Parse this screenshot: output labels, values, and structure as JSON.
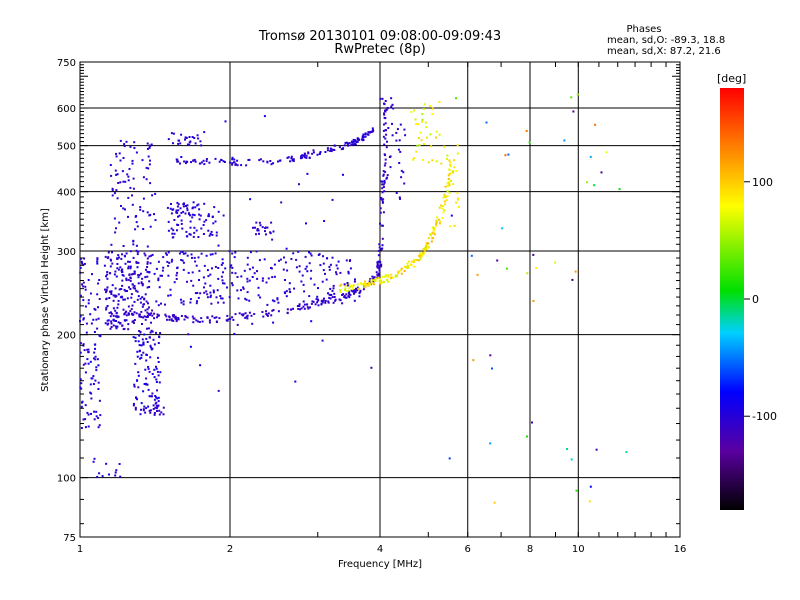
{
  "chart_data": {
    "type": "scatter",
    "title": "Tromsø 20130101 09:08:00-09:09:43",
    "subtitle": "RwPretec (8p)",
    "stats": {
      "heading": "Phases",
      "line_o": "mean, sd,O: -89.3, 18.8",
      "line_x": "mean, sd,X:  87.2, 21.6"
    },
    "xlabel": "Frequency [MHz]",
    "ylabel": "Stationary phase Virtual Height [km]",
    "x_scale": "log",
    "y_scale": "log",
    "xlim": [
      1,
      16
    ],
    "ylim": [
      75,
      750
    ],
    "x_ticks": [
      {
        "value": 1,
        "label": "1"
      },
      {
        "value": 2,
        "label": "2"
      },
      {
        "value": 4,
        "label": "4"
      },
      {
        "value": 6,
        "label": "6"
      },
      {
        "value": 8,
        "label": "8"
      },
      {
        "value": 10,
        "label": "10"
      },
      {
        "value": 16,
        "label": "16"
      }
    ],
    "x_gridlines": [
      2,
      4,
      6,
      8,
      10
    ],
    "y_ticks": [
      {
        "value": 75,
        "label": "75"
      },
      {
        "value": 100,
        "label": "100"
      },
      {
        "value": 200,
        "label": "200"
      },
      {
        "value": 300,
        "label": "300"
      },
      {
        "value": 400,
        "label": "400"
      },
      {
        "value": 500,
        "label": "500"
      },
      {
        "value": 600,
        "label": "600"
      },
      {
        "value": 750,
        "label": "750"
      }
    ],
    "y_gridlines": [
      100,
      200,
      300,
      400,
      500,
      600
    ],
    "colorbar": {
      "label": "[deg]",
      "min": -180,
      "max": 180,
      "ticks": [
        {
          "value": 100,
          "label": "100"
        },
        {
          "value": 0,
          "label": "0"
        },
        {
          "value": -100,
          "label": "-100"
        }
      ],
      "placement": "right",
      "colormap": [
        "#000000",
        "#5a00a0",
        "#0000ff",
        "#00d0ff",
        "#00e000",
        "#ffff00",
        "#ff8000",
        "#ff0000"
      ]
    },
    "grid": true,
    "series": [
      {
        "clusters": [
          {
            "curve": [
              [
                1.18,
                222
              ],
              [
                1.3,
                221
              ],
              [
                1.45,
                218
              ],
              [
                1.6,
                216
              ],
              [
                1.8,
                215
              ],
              [
                2.0,
                217
              ],
              [
                2.2,
                220
              ],
              [
                2.4,
                222
              ],
              [
                2.6,
                225
              ],
              [
                2.8,
                229
              ],
              [
                3.0,
                233
              ],
              [
                3.2,
                237
              ],
              [
                3.4,
                242
              ],
              [
                3.6,
                247
              ],
              [
                3.8,
                255
              ],
              [
                3.95,
                268
              ],
              [
                4.0,
                285
              ],
              [
                4.02,
                320
              ],
              [
                4.05,
                380
              ],
              [
                4.08,
                450
              ],
              [
                4.1,
                520
              ],
              [
                4.12,
                600
              ]
            ],
            "count": 260,
            "jitter": 0.03,
            "phase": [
              -115,
              -100
            ]
          },
          {
            "curve": [
              [
                3.3,
                250
              ],
              [
                3.6,
                253
              ],
              [
                3.9,
                258
              ],
              [
                4.1,
                262
              ],
              [
                4.4,
                270
              ],
              [
                4.7,
                285
              ],
              [
                4.9,
                300
              ],
              [
                5.1,
                325
              ],
              [
                5.3,
                360
              ],
              [
                5.5,
                410
              ],
              [
                5.6,
                460
              ]
            ],
            "count": 180,
            "jitter": 0.035,
            "phase": [
              60,
              110
            ]
          },
          {
            "curve": [
              [
                1.55,
                465
              ],
              [
                1.9,
                462
              ],
              [
                2.2,
                460
              ],
              [
                2.6,
                465
              ],
              [
                2.9,
                478
              ],
              [
                3.2,
                492
              ],
              [
                3.5,
                505
              ],
              [
                3.7,
                520
              ],
              [
                3.9,
                545
              ]
            ],
            "count": 150,
            "jitter": 0.03,
            "phase": [
              -110,
              -95
            ]
          },
          {
            "range": [
              1.12,
              1.4,
              205,
              300
            ],
            "count": 230,
            "phase": [
              -115,
              -95
            ]
          },
          {
            "range": [
              1.4,
              3.6,
              230,
              300
            ],
            "count": 260,
            "phase": [
              -110,
              -95
            ]
          },
          {
            "range": [
              1.5,
              1.9,
              320,
              380
            ],
            "count": 90,
            "phase": [
              -110,
              -95
            ]
          },
          {
            "range": [
              2.2,
              2.45,
              325,
              345
            ],
            "count": 20,
            "phase": [
              -110,
              -95
            ]
          },
          {
            "range": [
              1.28,
              1.45,
              140,
              205
            ],
            "count": 100,
            "phase": [
              -110,
              -85
            ]
          },
          {
            "range": [
              1.28,
              1.48,
              135,
              142
            ],
            "count": 25,
            "phase": [
              -115,
              -100
            ]
          },
          {
            "range": [
              1.0,
              1.1,
              125,
              290
            ],
            "count": 110,
            "phase": [
              -115,
              -90
            ]
          },
          {
            "range": [
              1.15,
              1.42,
              300,
              520
            ],
            "count": 90,
            "phase": [
              -110,
              -95
            ]
          },
          {
            "range": [
              1.5,
              1.78,
              500,
              535
            ],
            "count": 25,
            "phase": [
              -110,
              -95
            ]
          },
          {
            "range": [
              4.6,
              5.3,
              460,
              620
            ],
            "count": 35,
            "phase": [
              50,
              100
            ]
          },
          {
            "range": [
              5.3,
              5.8,
              330,
              520
            ],
            "count": 25,
            "phase": [
              60,
              100
            ]
          },
          {
            "range": [
              4.0,
              4.5,
              380,
              640
            ],
            "count": 45,
            "phase": [
              -110,
              -100
            ]
          },
          {
            "range": [
              1.05,
              1.25,
              100,
              110
            ],
            "count": 12,
            "phase": [
              -110,
              -90
            ]
          },
          {
            "range": [
              5.5,
              12.5,
              85,
              650
            ],
            "count": 45,
            "phase": [
              -150,
              140
            ]
          },
          {
            "range": [
              1.4,
              4.0,
              150,
              650
            ],
            "count": 40,
            "phase": [
              -120,
              -80
            ]
          }
        ]
      }
    ]
  }
}
